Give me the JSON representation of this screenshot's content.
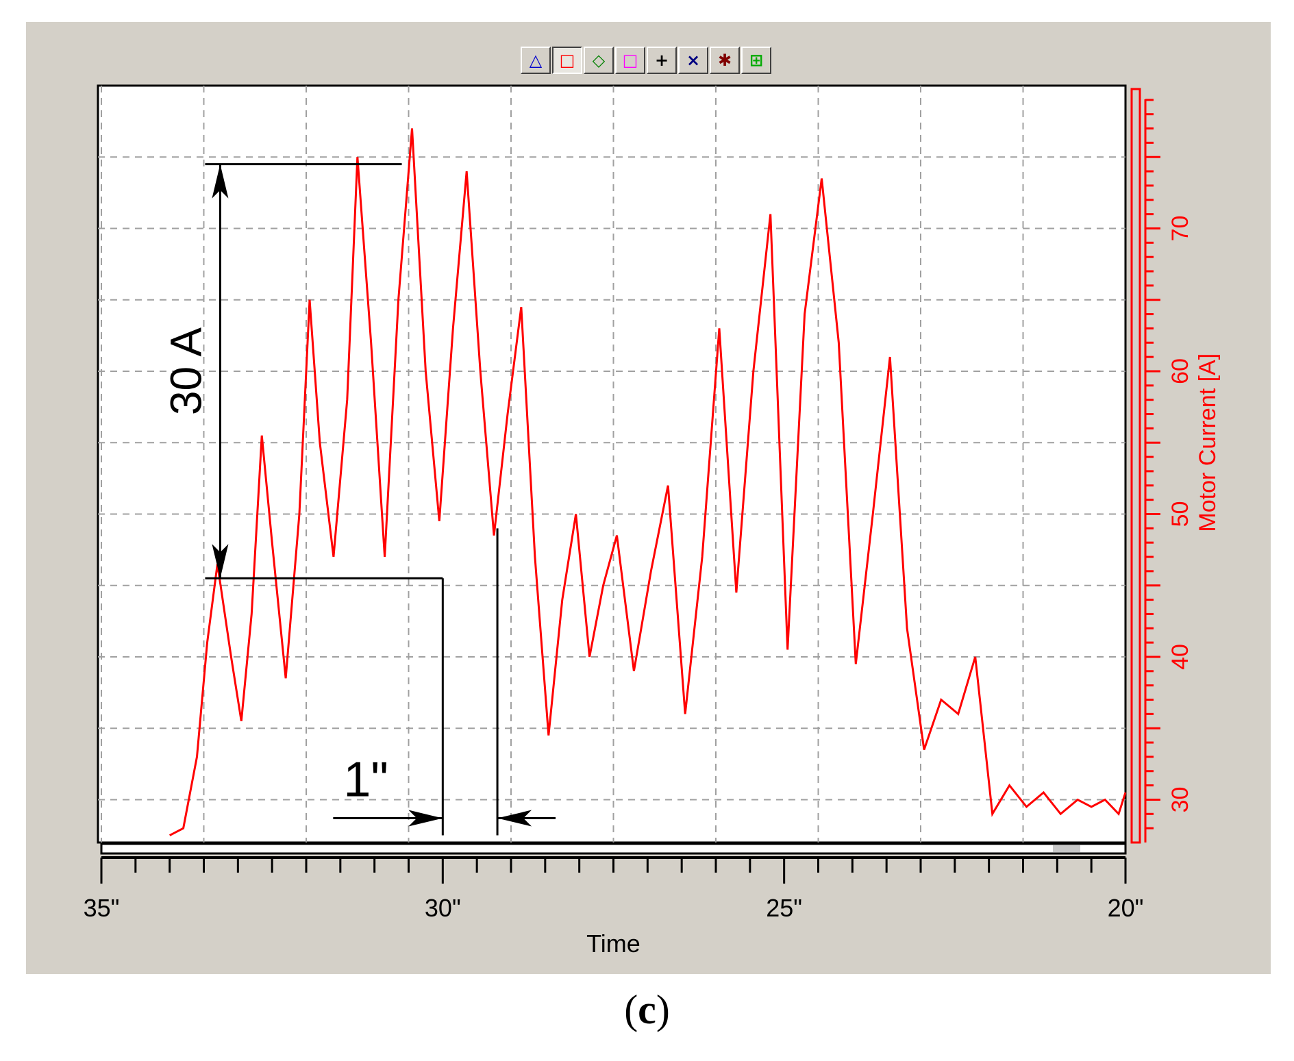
{
  "toolbar": {
    "buttons": [
      {
        "icon": "triangle-marker-icon",
        "glyph": "△",
        "color": "#0000cc"
      },
      {
        "icon": "square-marker-icon",
        "glyph": "□",
        "color": "#ff0000"
      },
      {
        "icon": "diamond-marker-icon",
        "glyph": "◇",
        "color": "#008000"
      },
      {
        "icon": "square-marker-magenta-icon",
        "glyph": "□",
        "color": "#ff00ff"
      },
      {
        "icon": "plus-marker-icon",
        "glyph": "+",
        "color": "#000000"
      },
      {
        "icon": "x-marker-icon",
        "glyph": "×",
        "color": "#000080"
      },
      {
        "icon": "star-marker-icon",
        "glyph": "✱",
        "color": "#800000"
      },
      {
        "icon": "grid-marker-icon",
        "glyph": "⊞",
        "color": "#00aa00"
      }
    ],
    "pressed_index": 1
  },
  "chart_data": {
    "type": "line",
    "xlabel": "Time",
    "ylabel": "Motor Current [A]",
    "x_tick_labels": [
      "35\"",
      "30\"",
      "25\"",
      "20\""
    ],
    "x_ticks": [
      35,
      30,
      25,
      20
    ],
    "xlim": [
      35,
      20
    ],
    "y_tick_labels": [
      "30",
      "40",
      "50",
      "60",
      "70"
    ],
    "y_ticks": [
      30,
      40,
      50,
      60,
      70
    ],
    "ylim": [
      27,
      80
    ],
    "grid": true,
    "line_color": "#ff0000",
    "series": [
      {
        "x": [
          34.0,
          33.8,
          33.6,
          33.45,
          33.3,
          33.1,
          32.95,
          32.8,
          32.65,
          32.5,
          32.3,
          32.1,
          31.95,
          31.8,
          31.6,
          31.4,
          31.25,
          31.05,
          30.85,
          30.65,
          30.45,
          30.25,
          30.05,
          29.85,
          29.65,
          29.45,
          29.25,
          29.05,
          28.85,
          28.65,
          28.45,
          28.25,
          28.05,
          27.85,
          27.65,
          27.45,
          27.2,
          26.95,
          26.7,
          26.45,
          26.2,
          25.95,
          25.7,
          25.45,
          25.2,
          24.95,
          24.7,
          24.45,
          24.2,
          23.95,
          23.7,
          23.45,
          23.2,
          22.95,
          22.7,
          22.45,
          22.2,
          21.95,
          21.7,
          21.45,
          21.2,
          20.95,
          20.7,
          20.5,
          20.3,
          20.1,
          20.0
        ],
        "y": [
          27.5,
          28.0,
          33.0,
          41.0,
          46.5,
          40.0,
          35.5,
          43.0,
          55.5,
          48.0,
          38.5,
          50.0,
          65.0,
          55.0,
          47.0,
          58.0,
          75.0,
          62.0,
          47.0,
          65.0,
          77.0,
          60.0,
          49.5,
          63.0,
          74.0,
          60.0,
          48.5,
          57.0,
          64.5,
          47.0,
          34.5,
          44.0,
          50.0,
          40.0,
          45.0,
          48.5,
          39.0,
          46.0,
          52.0,
          36.0,
          47.0,
          63.0,
          44.5,
          60.0,
          71.0,
          40.5,
          64.0,
          73.5,
          62.0,
          39.5,
          50.0,
          61.0,
          42.0,
          33.5,
          37.0,
          36.0,
          40.0,
          29.0,
          31.0,
          29.5,
          30.5,
          29.0,
          30.0,
          29.5,
          30.0,
          29.0,
          30.5
        ]
      }
    ],
    "annotations": {
      "amplitude_label": "30 A",
      "amplitude_from": 45.5,
      "amplitude_to": 74.5,
      "amplitude_x_from": 33.3,
      "amplitude_x_to": 30.6,
      "period_label": "1\"",
      "period_from": 30.0,
      "period_to": 29.2
    }
  },
  "caption": {
    "open": "(",
    "letter": "c",
    "close": ")"
  }
}
